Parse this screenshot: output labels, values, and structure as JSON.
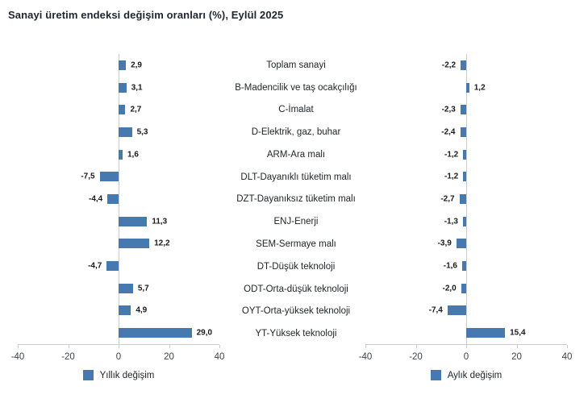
{
  "title": "Sanayi üretim endeksi değişim oranları (%), Eylül 2025",
  "colors": {
    "bar": "#4579b0",
    "axis_line": "#cccccc",
    "title_text": "#1f2430",
    "label_text": "#212529",
    "value_text": "#1a1a1a"
  },
  "chart_data": {
    "type": "bar",
    "orientation": "horizontal",
    "title": "Sanayi üretim endeksi değişim oranları (%), Eylül 2025",
    "categories": [
      "Toplam sanayi",
      "B-Madencilik ve taş ocakçılığı",
      "C-İmalat",
      "D-Elektrik, gaz, buhar",
      "ARM-Ara malı",
      "DLT-Dayanıklı tüketim malı",
      "DZT-Dayanıksız tüketim malı",
      "ENJ-Enerji",
      "SEM-Sermaye malı",
      "DT-Düşük teknoloji",
      "ODT-Orta-düşük teknoloji",
      "OYT-Orta-yüksek teknoloji",
      "YT-Yüksek teknoloji"
    ],
    "series": [
      {
        "name": "Yıllık değişim",
        "values": [
          2.9,
          3.1,
          2.7,
          5.3,
          1.6,
          -7.5,
          -4.4,
          11.3,
          12.2,
          -4.7,
          5.7,
          4.9,
          29.0
        ]
      },
      {
        "name": "Aylık değişim",
        "values": [
          -2.2,
          1.2,
          -2.3,
          -2.4,
          -1.2,
          -1.2,
          -2.7,
          -1.3,
          -3.9,
          -1.6,
          -2.0,
          -7.4,
          15.4
        ]
      }
    ],
    "xlim": [
      -40,
      40
    ],
    "x_ticks": [
      -40,
      -20,
      0,
      20,
      40
    ],
    "grid": false,
    "legend_position": "bottom",
    "decimal_separator": ","
  }
}
